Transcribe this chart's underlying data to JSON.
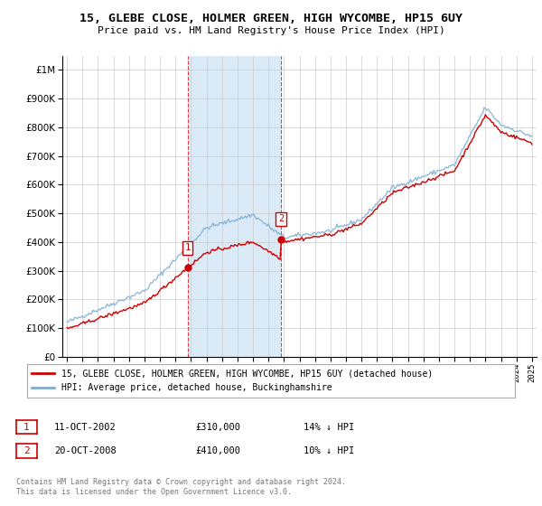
{
  "title": "15, GLEBE CLOSE, HOLMER GREEN, HIGH WYCOMBE, HP15 6UY",
  "subtitle": "Price paid vs. HM Land Registry's House Price Index (HPI)",
  "legend_line1": "15, GLEBE CLOSE, HOLMER GREEN, HIGH WYCOMBE, HP15 6UY (detached house)",
  "legend_line2": "HPI: Average price, detached house, Buckinghamshire",
  "transaction1_label": "1",
  "transaction1_date": "11-OCT-2002",
  "transaction1_price": "£310,000",
  "transaction1_hpi": "14% ↓ HPI",
  "transaction1_x": 2002.78,
  "transaction1_y": 310000,
  "transaction2_label": "2",
  "transaction2_date": "20-OCT-2008",
  "transaction2_price": "£410,000",
  "transaction2_hpi": "10% ↓ HPI",
  "transaction2_x": 2008.8,
  "transaction2_y": 410000,
  "copyright": "Contains HM Land Registry data © Crown copyright and database right 2024.\nThis data is licensed under the Open Government Licence v3.0.",
  "hpi_color": "#7aadd4",
  "price_color": "#cc0000",
  "background_color": "#ffffff",
  "shading_color": "#daeaf7",
  "shading_alpha": 0.6,
  "ylim": [
    0,
    1050000
  ],
  "xlim": [
    1994.7,
    2025.3
  ],
  "grid_color": "#cccccc",
  "shade_x1": 2002.78,
  "shade_x2": 2008.8
}
